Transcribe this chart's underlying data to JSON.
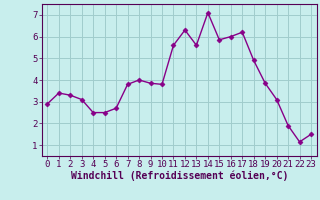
{
  "x": [
    0,
    1,
    2,
    3,
    4,
    5,
    6,
    7,
    8,
    9,
    10,
    11,
    12,
    13,
    14,
    15,
    16,
    17,
    18,
    19,
    20,
    21,
    22,
    23
  ],
  "y": [
    2.9,
    3.4,
    3.3,
    3.1,
    2.5,
    2.5,
    2.7,
    3.8,
    4.0,
    3.85,
    3.8,
    5.6,
    6.3,
    5.6,
    7.1,
    5.85,
    6.0,
    6.2,
    4.9,
    3.85,
    3.1,
    1.9,
    1.15,
    1.5
  ],
  "line_color": "#880088",
  "marker": "D",
  "marker_size": 2.5,
  "bg_color": "#c8eeed",
  "grid_color": "#a0cccc",
  "xlabel": "Windchill (Refroidissement éolien,°C)",
  "xlim": [
    -0.5,
    23.5
  ],
  "ylim": [
    0.5,
    7.5
  ],
  "yticks": [
    1,
    2,
    3,
    4,
    5,
    6,
    7
  ],
  "xticks": [
    0,
    1,
    2,
    3,
    4,
    5,
    6,
    7,
    8,
    9,
    10,
    11,
    12,
    13,
    14,
    15,
    16,
    17,
    18,
    19,
    20,
    21,
    22,
    23
  ],
  "xlabel_color": "#550055",
  "tick_color": "#550055",
  "spine_color": "#550055",
  "xlabel_fontsize": 7,
  "tick_fontsize": 6.5,
  "linewidth": 1.0
}
